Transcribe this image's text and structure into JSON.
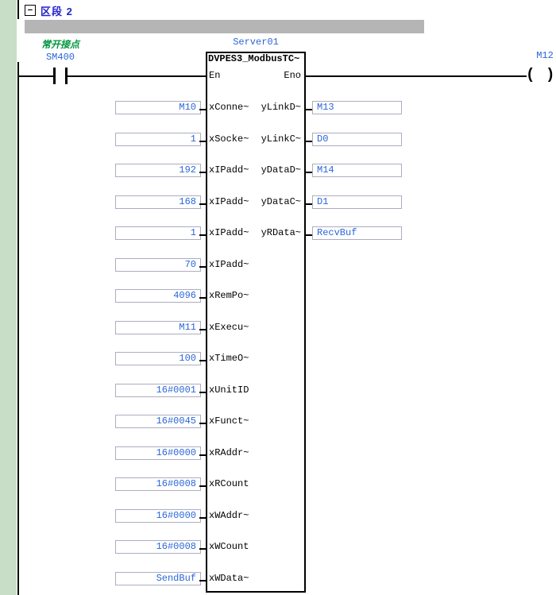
{
  "section": {
    "collapse_icon": "−",
    "title": "区段 2"
  },
  "network_comment_bar": "",
  "contact": {
    "comment": "常开接点",
    "operand": "SM400"
  },
  "coil": {
    "operand": "M12",
    "symbol_open": "(",
    "symbol_close": ")"
  },
  "function_block": {
    "instance_name": "Server01",
    "type_name": "DVPES3_ModbusTC~",
    "en_label": "En",
    "eno_label": "Eno",
    "rows": [
      {
        "input": "M10",
        "pin": "xConne~",
        "out_pin": "yLinkD~",
        "output": "M13"
      },
      {
        "input": "1",
        "pin": "xSocke~",
        "out_pin": "yLinkC~",
        "output": "D0"
      },
      {
        "input": "192",
        "pin": "xIPadd~",
        "out_pin": "yDataD~",
        "output": "M14"
      },
      {
        "input": "168",
        "pin": "xIPadd~",
        "out_pin": "yDataC~",
        "output": "D1"
      },
      {
        "input": "1",
        "pin": "xIPadd~",
        "out_pin": "yRData~",
        "output": "RecvBuf"
      },
      {
        "input": "70",
        "pin": "xIPadd~"
      },
      {
        "input": "4096",
        "pin": "xRemPo~"
      },
      {
        "input": "M11",
        "pin": "xExecu~"
      },
      {
        "input": "100",
        "pin": "xTimeO~"
      },
      {
        "input": "16#0001",
        "pin": "xUnitID"
      },
      {
        "input": "16#0045",
        "pin": "xFunct~"
      },
      {
        "input": "16#0000",
        "pin": "xRAddr~"
      },
      {
        "input": "16#0008",
        "pin": "xRCount"
      },
      {
        "input": "16#0000",
        "pin": "xWAddr~"
      },
      {
        "input": "16#0008",
        "pin": "xWCount"
      },
      {
        "input": "SendBuf",
        "pin": "xWData~"
      }
    ]
  },
  "colors": {
    "operand_blue": "#2B66D9",
    "section_blue": "#2222CC",
    "comment_green": "#00963C",
    "comment_bar_gray": "#B5B5B5",
    "margin_green": "#C8DEC6",
    "line_black": "#000000",
    "value_box_border": "#ADADC0"
  }
}
